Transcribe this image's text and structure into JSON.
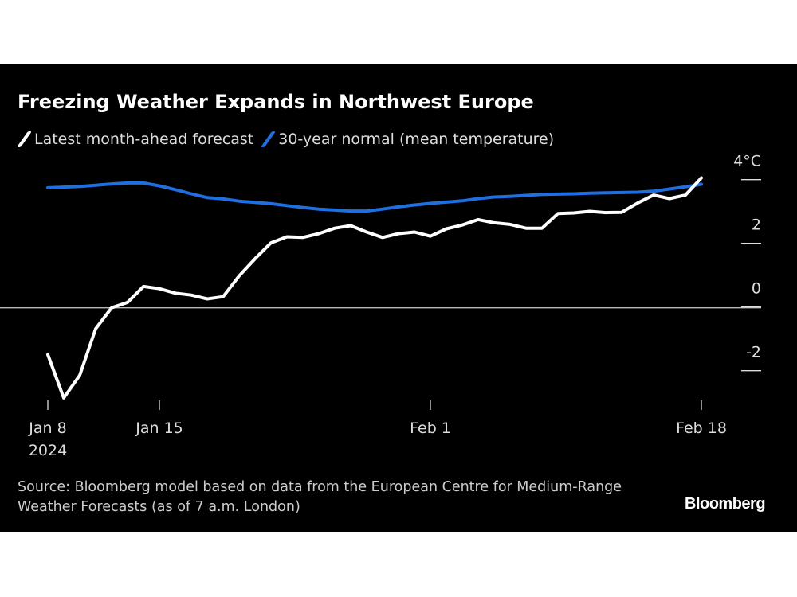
{
  "chart_data": {
    "type": "line",
    "title": "Freezing Weather Expands in Northwest Europe",
    "unit_label": "4°C",
    "x": [
      "2024-01-08",
      "2024-01-09",
      "2024-01-10",
      "2024-01-11",
      "2024-01-12",
      "2024-01-13",
      "2024-01-14",
      "2024-01-15",
      "2024-01-16",
      "2024-01-17",
      "2024-01-18",
      "2024-01-19",
      "2024-01-20",
      "2024-01-21",
      "2024-01-22",
      "2024-01-23",
      "2024-01-24",
      "2024-01-25",
      "2024-01-26",
      "2024-01-27",
      "2024-01-28",
      "2024-01-29",
      "2024-01-30",
      "2024-01-31",
      "2024-02-01",
      "2024-02-02",
      "2024-02-03",
      "2024-02-04",
      "2024-02-05",
      "2024-02-06",
      "2024-02-07",
      "2024-02-08",
      "2024-02-09",
      "2024-02-10",
      "2024-02-11",
      "2024-02-12",
      "2024-02-13",
      "2024-02-14",
      "2024-02-15",
      "2024-02-16",
      "2024-02-17",
      "2024-02-18"
    ],
    "series": [
      {
        "name": "Latest month-ahead forecast",
        "color": "#ffffff",
        "values": [
          -1.47,
          -2.83,
          -2.12,
          -0.66,
          0.0,
          0.17,
          0.67,
          0.6,
          0.46,
          0.4,
          0.28,
          0.35,
          1.0,
          1.54,
          2.04,
          2.23,
          2.21,
          2.33,
          2.5,
          2.58,
          2.38,
          2.21,
          2.33,
          2.38,
          2.25,
          2.48,
          2.6,
          2.77,
          2.67,
          2.62,
          2.5,
          2.5,
          2.96,
          2.98,
          3.03,
          2.99,
          3.0,
          3.29,
          3.54,
          3.43,
          3.54,
          4.08
        ]
      },
      {
        "name": "30-year normal (mean temperature)",
        "color": "#1f6fe0",
        "values": [
          3.77,
          3.79,
          3.81,
          3.85,
          3.89,
          3.92,
          3.92,
          3.83,
          3.71,
          3.58,
          3.46,
          3.42,
          3.35,
          3.31,
          3.27,
          3.21,
          3.15,
          3.1,
          3.07,
          3.04,
          3.04,
          3.1,
          3.17,
          3.23,
          3.28,
          3.32,
          3.36,
          3.43,
          3.48,
          3.5,
          3.53,
          3.56,
          3.57,
          3.58,
          3.6,
          3.61,
          3.62,
          3.63,
          3.66,
          3.73,
          3.8,
          3.88
        ]
      }
    ],
    "y_ticks": [
      {
        "value": 4,
        "label": "4°C"
      },
      {
        "value": 2,
        "label": "2"
      },
      {
        "value": 0,
        "label": "0"
      },
      {
        "value": -2,
        "label": "-2"
      }
    ],
    "x_ticks": [
      {
        "date": "2024-01-08",
        "label": "Jan 8",
        "sub": "2024"
      },
      {
        "date": "2024-01-15",
        "label": "Jan 15",
        "sub": ""
      },
      {
        "date": "2024-02-01",
        "label": "Feb 1",
        "sub": ""
      },
      {
        "date": "2024-02-18",
        "label": "Feb 18",
        "sub": ""
      }
    ],
    "ylim": [
      -3,
      4.5
    ],
    "zero_line": true,
    "legend_position": "top-left"
  },
  "source": "Source: Bloomberg model based on data from the European Centre for Medium-Range Weather Forecasts (as of 7 a.m. London)",
  "logo": "Bloomberg"
}
